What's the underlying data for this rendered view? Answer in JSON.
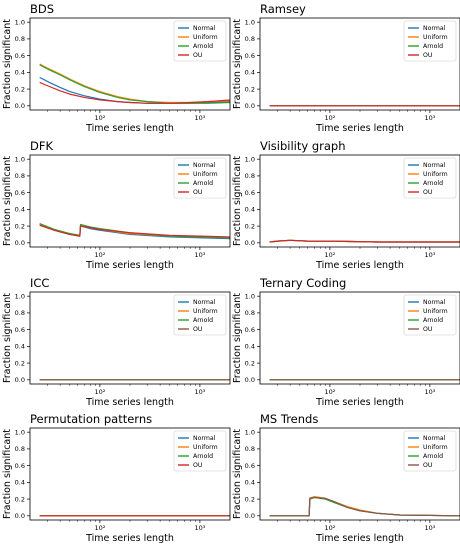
{
  "chart_data": [
    {
      "type": "line",
      "title": "BDS",
      "xlabel": "Time series length",
      "ylabel": "Fraction significant",
      "xscale": "log",
      "xlim": [
        20,
        2000
      ],
      "ylim": [
        -0.05,
        1.05
      ],
      "yticks": [
        "0.0",
        "0.2",
        "0.4",
        "0.6",
        "0.8",
        "1.0"
      ],
      "xticks": [
        {
          "value": 100,
          "label": "10²"
        },
        {
          "value": 1000,
          "label": "10³"
        }
      ],
      "legend": "top-right",
      "series": [
        {
          "name": "Normal",
          "color": "#1f77b4",
          "x": [
            25,
            30,
            40,
            50,
            70,
            100,
            150,
            200,
            300,
            500,
            800,
            1200,
            2000
          ],
          "y": [
            0.34,
            0.29,
            0.22,
            0.17,
            0.12,
            0.08,
            0.05,
            0.04,
            0.03,
            0.03,
            0.03,
            0.04,
            0.05
          ]
        },
        {
          "name": "Uniform",
          "color": "#ff7f0e",
          "x": [
            25,
            30,
            40,
            50,
            70,
            100,
            150,
            200,
            300,
            500,
            800,
            1200,
            2000
          ],
          "y": [
            0.5,
            0.45,
            0.38,
            0.32,
            0.24,
            0.17,
            0.11,
            0.08,
            0.05,
            0.04,
            0.04,
            0.05,
            0.06
          ]
        },
        {
          "name": "Arnold",
          "color": "#2ca02c",
          "x": [
            25,
            30,
            40,
            50,
            70,
            100,
            150,
            200,
            300,
            500,
            800,
            1200,
            2000
          ],
          "y": [
            0.49,
            0.44,
            0.37,
            0.31,
            0.23,
            0.16,
            0.1,
            0.07,
            0.05,
            0.03,
            0.03,
            0.03,
            0.04
          ]
        },
        {
          "name": "OU",
          "color": "#d62728",
          "x": [
            25,
            30,
            40,
            50,
            70,
            100,
            150,
            200,
            300,
            500,
            800,
            1200,
            2000
          ],
          "y": [
            0.28,
            0.24,
            0.18,
            0.14,
            0.1,
            0.07,
            0.05,
            0.04,
            0.03,
            0.03,
            0.04,
            0.05,
            0.07
          ]
        }
      ]
    },
    {
      "type": "line",
      "title": "Ramsey",
      "xlabel": "Time series length",
      "ylabel": "Fraction significant",
      "xscale": "log",
      "xlim": [
        20,
        2000
      ],
      "ylim": [
        -0.05,
        1.05
      ],
      "yticks": [
        "0.0",
        "0.2",
        "0.4",
        "0.6",
        "0.8",
        "1.0"
      ],
      "xticks": [
        {
          "value": 100,
          "label": "10²"
        },
        {
          "value": 1000,
          "label": "10³"
        }
      ],
      "legend": "top-right",
      "series": [
        {
          "name": "Normal",
          "color": "#1f77b4",
          "x": [
            25,
            2000
          ],
          "y": [
            0.0,
            0.0
          ]
        },
        {
          "name": "Uniform",
          "color": "#ff7f0e",
          "x": [
            25,
            2000
          ],
          "y": [
            0.0,
            0.0
          ]
        },
        {
          "name": "Arnold",
          "color": "#2ca02c",
          "x": [
            25,
            2000
          ],
          "y": [
            0.0,
            0.0
          ]
        },
        {
          "name": "OU",
          "color": "#d62728",
          "x": [
            25,
            2000
          ],
          "y": [
            0.0,
            0.0
          ]
        }
      ]
    },
    {
      "type": "line",
      "title": "DFK",
      "xlabel": "Time series length",
      "ylabel": "Fraction significant",
      "xscale": "log",
      "xlim": [
        20,
        2000
      ],
      "ylim": [
        -0.05,
        1.05
      ],
      "yticks": [
        "0.0",
        "0.2",
        "0.4",
        "0.6",
        "0.8",
        "1.0"
      ],
      "xticks": [
        {
          "value": 100,
          "label": "10²"
        },
        {
          "value": 1000,
          "label": "10³"
        }
      ],
      "legend": "top-right",
      "series": [
        {
          "name": "Normal",
          "color": "#1f77b4",
          "x": [
            25,
            35,
            50,
            63,
            64,
            80,
            100,
            200,
            500,
            1000,
            2000
          ],
          "y": [
            0.22,
            0.15,
            0.1,
            0.08,
            0.2,
            0.17,
            0.15,
            0.1,
            0.07,
            0.06,
            0.05
          ]
        },
        {
          "name": "Uniform",
          "color": "#ff7f0e",
          "x": [
            25,
            35,
            50,
            63,
            64,
            80,
            100,
            200,
            500,
            1000,
            2000
          ],
          "y": [
            0.22,
            0.16,
            0.11,
            0.09,
            0.21,
            0.18,
            0.16,
            0.11,
            0.08,
            0.07,
            0.06
          ]
        },
        {
          "name": "Arnold",
          "color": "#2ca02c",
          "x": [
            25,
            35,
            50,
            63,
            64,
            80,
            100,
            200,
            500,
            1000,
            2000
          ],
          "y": [
            0.23,
            0.16,
            0.11,
            0.09,
            0.22,
            0.19,
            0.17,
            0.12,
            0.08,
            0.07,
            0.06
          ]
        },
        {
          "name": "OU",
          "color": "#d62728",
          "x": [
            25,
            35,
            50,
            63,
            64,
            80,
            100,
            200,
            500,
            1000,
            2000
          ],
          "y": [
            0.21,
            0.15,
            0.1,
            0.08,
            0.2,
            0.18,
            0.16,
            0.12,
            0.09,
            0.08,
            0.07
          ]
        }
      ]
    },
    {
      "type": "line",
      "title": "Visibility graph",
      "xlabel": "Time series length",
      "ylabel": "Fraction significant",
      "xscale": "log",
      "xlim": [
        20,
        2000
      ],
      "ylim": [
        -0.05,
        1.05
      ],
      "yticks": [
        "0.0",
        "0.2",
        "0.4",
        "0.6",
        "0.8",
        "1.0"
      ],
      "xticks": [
        {
          "value": 100,
          "label": "10²"
        },
        {
          "value": 1000,
          "label": "10³"
        }
      ],
      "legend": "top-right",
      "series": [
        {
          "name": "Normal",
          "color": "#1f77b4",
          "x": [
            25,
            30,
            40,
            60,
            100,
            300,
            1000,
            2000
          ],
          "y": [
            0.01,
            0.02,
            0.03,
            0.02,
            0.02,
            0.01,
            0.01,
            0.01
          ]
        },
        {
          "name": "Uniform",
          "color": "#ff7f0e",
          "x": [
            25,
            30,
            40,
            60,
            100,
            300,
            1000,
            2000
          ],
          "y": [
            0.01,
            0.02,
            0.03,
            0.02,
            0.02,
            0.01,
            0.01,
            0.01
          ]
        },
        {
          "name": "Arnold",
          "color": "#2ca02c",
          "x": [
            25,
            30,
            40,
            60,
            100,
            300,
            1000,
            2000
          ],
          "y": [
            0.01,
            0.02,
            0.03,
            0.02,
            0.02,
            0.01,
            0.01,
            0.01
          ]
        },
        {
          "name": "OU",
          "color": "#d62728",
          "x": [
            25,
            30,
            40,
            60,
            100,
            300,
            1000,
            2000
          ],
          "y": [
            0.01,
            0.02,
            0.03,
            0.02,
            0.02,
            0.01,
            0.01,
            0.01
          ]
        }
      ]
    },
    {
      "type": "line",
      "title": "ICC",
      "xlabel": "Time series length",
      "ylabel": "Fraction significant",
      "xscale": "log",
      "xlim": [
        20,
        2000
      ],
      "ylim": [
        -0.05,
        1.05
      ],
      "yticks": [
        "0.0",
        "0.2",
        "0.4",
        "0.6",
        "0.8",
        "1.0"
      ],
      "xticks": [
        {
          "value": 100,
          "label": "10²"
        },
        {
          "value": 1000,
          "label": "10³"
        }
      ],
      "legend": "top-right",
      "series": [
        {
          "name": "Normal",
          "color": "#1f77b4",
          "x": [
            25,
            2000
          ],
          "y": [
            0.0,
            0.0
          ]
        },
        {
          "name": "Uniform",
          "color": "#ff7f0e",
          "x": [
            25,
            2000
          ],
          "y": [
            0.0,
            0.0
          ]
        },
        {
          "name": "Arnold",
          "color": "#2ca02c",
          "x": [
            25,
            2000
          ],
          "y": [
            0.0,
            0.0
          ]
        },
        {
          "name": "OU",
          "color": "#8c564b",
          "x": [
            25,
            2000
          ],
          "y": [
            0.0,
            0.0
          ]
        }
      ]
    },
    {
      "type": "line",
      "title": "Ternary Coding",
      "xlabel": "Time series length",
      "ylabel": "Fraction significant",
      "xscale": "log",
      "xlim": [
        20,
        2000
      ],
      "ylim": [
        -0.05,
        1.05
      ],
      "yticks": [
        "0.0",
        "0.2",
        "0.4",
        "0.6",
        "0.8",
        "1.0"
      ],
      "xticks": [
        {
          "value": 100,
          "label": "10²"
        },
        {
          "value": 1000,
          "label": "10³"
        }
      ],
      "legend": "top-right",
      "series": [
        {
          "name": "Normal",
          "color": "#1f77b4",
          "x": [
            25,
            2000
          ],
          "y": [
            0.0,
            0.0
          ]
        },
        {
          "name": "Uniform",
          "color": "#ff7f0e",
          "x": [
            25,
            2000
          ],
          "y": [
            0.0,
            0.0
          ]
        },
        {
          "name": "Arnold",
          "color": "#2ca02c",
          "x": [
            25,
            2000
          ],
          "y": [
            0.0,
            0.0
          ]
        },
        {
          "name": "OU",
          "color": "#8c564b",
          "x": [
            25,
            2000
          ],
          "y": [
            0.0,
            0.0
          ]
        }
      ]
    },
    {
      "type": "line",
      "title": "Permutation patterns",
      "xlabel": "Time series length",
      "ylabel": "Fraction significant",
      "xscale": "log",
      "xlim": [
        20,
        2000
      ],
      "ylim": [
        -0.05,
        1.05
      ],
      "yticks": [
        "0.0",
        "0.2",
        "0.4",
        "0.6",
        "0.8",
        "1.0"
      ],
      "xticks": [
        {
          "value": 100,
          "label": "10²"
        },
        {
          "value": 1000,
          "label": "10³"
        }
      ],
      "legend": "top-right",
      "series": [
        {
          "name": "Normal",
          "color": "#1f77b4",
          "x": [
            25,
            2000
          ],
          "y": [
            0.0,
            0.0
          ]
        },
        {
          "name": "Uniform",
          "color": "#ff7f0e",
          "x": [
            25,
            2000
          ],
          "y": [
            0.0,
            0.0
          ]
        },
        {
          "name": "Arnold",
          "color": "#2ca02c",
          "x": [
            25,
            2000
          ],
          "y": [
            0.0,
            0.0
          ]
        },
        {
          "name": "OU",
          "color": "#d62728",
          "x": [
            25,
            2000
          ],
          "y": [
            0.0,
            0.0
          ]
        }
      ]
    },
    {
      "type": "line",
      "title": "MS Trends",
      "xlabel": "Time series length",
      "ylabel": "Fraction significant",
      "xscale": "log",
      "xlim": [
        20,
        2000
      ],
      "ylim": [
        -0.05,
        1.05
      ],
      "yticks": [
        "0.0",
        "0.2",
        "0.4",
        "0.6",
        "0.8",
        "1.0"
      ],
      "xticks": [
        {
          "value": 100,
          "label": "10²"
        },
        {
          "value": 1000,
          "label": "10³"
        }
      ],
      "legend": "top-right",
      "series": [
        {
          "name": "Normal",
          "color": "#1f77b4",
          "x": [
            25,
            62,
            63,
            70,
            90,
            110,
            150,
            200,
            300,
            500,
            2000
          ],
          "y": [
            0.0,
            0.0,
            0.2,
            0.22,
            0.2,
            0.16,
            0.1,
            0.06,
            0.03,
            0.01,
            0.0
          ]
        },
        {
          "name": "Uniform",
          "color": "#ff7f0e",
          "x": [
            25,
            62,
            63,
            70,
            90,
            110,
            150,
            200,
            300,
            500,
            2000
          ],
          "y": [
            0.0,
            0.0,
            0.21,
            0.23,
            0.21,
            0.17,
            0.11,
            0.07,
            0.03,
            0.01,
            0.0
          ]
        },
        {
          "name": "Arnold",
          "color": "#2ca02c",
          "x": [
            25,
            62,
            63,
            70,
            90,
            110,
            150,
            200,
            300,
            500,
            2000
          ],
          "y": [
            0.0,
            0.0,
            0.2,
            0.22,
            0.2,
            0.16,
            0.1,
            0.06,
            0.03,
            0.01,
            0.0
          ]
        },
        {
          "name": "OU",
          "color": "#8c564b",
          "x": [
            25,
            62,
            63,
            70,
            90,
            110,
            150,
            200,
            300,
            500,
            2000
          ],
          "y": [
            0.0,
            0.0,
            0.21,
            0.22,
            0.21,
            0.17,
            0.1,
            0.06,
            0.03,
            0.01,
            0.0
          ]
        }
      ]
    }
  ]
}
